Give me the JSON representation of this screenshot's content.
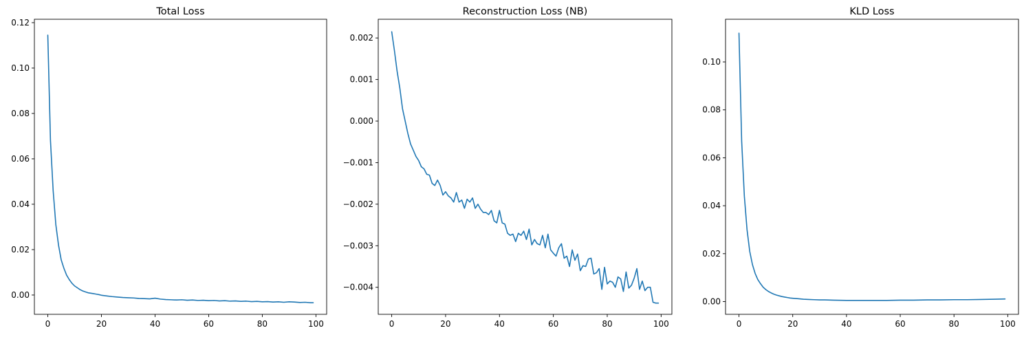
{
  "chart_data": [
    {
      "type": "line",
      "title": "Total Loss",
      "xlabel": "",
      "ylabel": "",
      "xlim": [
        -5,
        104
      ],
      "ylim": [
        -0.0085,
        0.1215
      ],
      "xticks": [
        0,
        20,
        40,
        60,
        80,
        100
      ],
      "xtick_labels": [
        "0",
        "20",
        "40",
        "60",
        "80",
        "100"
      ],
      "yticks": [
        0.0,
        0.02,
        0.04,
        0.06,
        0.08,
        0.1,
        0.12
      ],
      "ytick_labels": [
        "0.00",
        "0.02",
        "0.04",
        "0.06",
        "0.08",
        "0.10",
        "0.12"
      ],
      "grid": false,
      "series": [
        {
          "color": "#1f77b4",
          "x": [
            0,
            1,
            2,
            3,
            4,
            5,
            6,
            7,
            8,
            9,
            10,
            11,
            12,
            13,
            14,
            15,
            16,
            17,
            18,
            19,
            20,
            22,
            24,
            26,
            28,
            30,
            32,
            34,
            36,
            38,
            40,
            42,
            44,
            46,
            48,
            50,
            52,
            54,
            56,
            58,
            60,
            62,
            64,
            66,
            68,
            70,
            72,
            74,
            76,
            78,
            80,
            82,
            84,
            86,
            88,
            90,
            92,
            94,
            96,
            98,
            99
          ],
          "y": [
            0.1145,
            0.068,
            0.046,
            0.031,
            0.022,
            0.0155,
            0.0118,
            0.0088,
            0.0068,
            0.0052,
            0.004,
            0.0032,
            0.0024,
            0.0018,
            0.0014,
            0.001,
            0.0008,
            0.0006,
            0.0004,
            0.0002,
            -0.0001,
            -0.0004,
            -0.0007,
            -0.0009,
            -0.0011,
            -0.0012,
            -0.0013,
            -0.0015,
            -0.0016,
            -0.0017,
            -0.0014,
            -0.0018,
            -0.002,
            -0.0021,
            -0.0022,
            -0.0021,
            -0.0023,
            -0.0022,
            -0.0024,
            -0.0023,
            -0.0025,
            -0.0024,
            -0.0026,
            -0.0025,
            -0.0027,
            -0.0026,
            -0.0028,
            -0.0027,
            -0.0029,
            -0.0028,
            -0.003,
            -0.0029,
            -0.0031,
            -0.003,
            -0.0032,
            -0.003,
            -0.0031,
            -0.0033,
            -0.0032,
            -0.0034,
            -0.0034
          ]
        }
      ]
    },
    {
      "type": "line",
      "title": "Reconstruction Loss (NB)",
      "xlabel": "",
      "ylabel": "",
      "xlim": [
        -5,
        104
      ],
      "ylim": [
        -0.00465,
        0.00245
      ],
      "xticks": [
        0,
        20,
        40,
        60,
        80,
        100
      ],
      "xtick_labels": [
        "0",
        "20",
        "40",
        "60",
        "80",
        "100"
      ],
      "yticks": [
        -0.004,
        -0.003,
        -0.002,
        -0.001,
        0.0,
        0.001,
        0.002
      ],
      "ytick_labels": [
        "−0.004",
        "−0.003",
        "−0.002",
        "−0.001",
        "0.000",
        "0.001",
        "0.002"
      ],
      "grid": false,
      "series": [
        {
          "color": "#1f77b4",
          "x": [
            0,
            1,
            2,
            3,
            4,
            5,
            6,
            7,
            8,
            9,
            10,
            11,
            12,
            13,
            14,
            15,
            16,
            17,
            18,
            19,
            20,
            21,
            22,
            23,
            24,
            25,
            26,
            27,
            28,
            29,
            30,
            31,
            32,
            33,
            34,
            35,
            36,
            37,
            38,
            39,
            40,
            41,
            42,
            43,
            44,
            45,
            46,
            47,
            48,
            49,
            50,
            51,
            52,
            53,
            54,
            55,
            56,
            57,
            58,
            59,
            60,
            61,
            62,
            63,
            64,
            65,
            66,
            67,
            68,
            69,
            70,
            71,
            72,
            73,
            74,
            75,
            76,
            77,
            78,
            79,
            80,
            81,
            82,
            83,
            84,
            85,
            86,
            87,
            88,
            89,
            90,
            91,
            92,
            93,
            94,
            95,
            96,
            97,
            98,
            99
          ],
          "y": [
            0.00215,
            0.0017,
            0.0012,
            0.0008,
            0.0003,
            0.0,
            -0.0003,
            -0.00055,
            -0.0007,
            -0.00085,
            -0.00095,
            -0.0011,
            -0.00115,
            -0.00128,
            -0.0013,
            -0.0015,
            -0.00155,
            -0.00142,
            -0.00155,
            -0.00178,
            -0.0017,
            -0.0018,
            -0.00185,
            -0.00195,
            -0.00172,
            -0.00195,
            -0.0019,
            -0.0021,
            -0.00188,
            -0.00195,
            -0.00185,
            -0.0021,
            -0.002,
            -0.00212,
            -0.0022,
            -0.0022,
            -0.00225,
            -0.00215,
            -0.0024,
            -0.00245,
            -0.00215,
            -0.00245,
            -0.00248,
            -0.0027,
            -0.00275,
            -0.00272,
            -0.0029,
            -0.0027,
            -0.00275,
            -0.00265,
            -0.00285,
            -0.0026,
            -0.00298,
            -0.00285,
            -0.00295,
            -0.00298,
            -0.00275,
            -0.00305,
            -0.00272,
            -0.0031,
            -0.00318,
            -0.00325,
            -0.00305,
            -0.00295,
            -0.0033,
            -0.00325,
            -0.0035,
            -0.0031,
            -0.00335,
            -0.0032,
            -0.0036,
            -0.00348,
            -0.0035,
            -0.00332,
            -0.0033,
            -0.00368,
            -0.00365,
            -0.00355,
            -0.00405,
            -0.00352,
            -0.00392,
            -0.00385,
            -0.00388,
            -0.004,
            -0.00375,
            -0.0038,
            -0.0041,
            -0.00363,
            -0.00402,
            -0.00395,
            -0.00378,
            -0.00355,
            -0.00405,
            -0.00385,
            -0.00408,
            -0.004,
            -0.004,
            -0.00436,
            -0.00438,
            -0.00438
          ]
        }
      ]
    },
    {
      "type": "line",
      "title": "KLD Loss",
      "xlabel": "",
      "ylabel": "",
      "xlim": [
        -5,
        104
      ],
      "ylim": [
        -0.0053,
        0.1178
      ],
      "xticks": [
        0,
        20,
        40,
        60,
        80,
        100
      ],
      "xtick_labels": [
        "0",
        "20",
        "40",
        "60",
        "80",
        "100"
      ],
      "yticks": [
        0.0,
        0.02,
        0.04,
        0.06,
        0.08,
        0.1
      ],
      "ytick_labels": [
        "0.00",
        "0.02",
        "0.04",
        "0.06",
        "0.08",
        "0.10"
      ],
      "grid": false,
      "series": [
        {
          "color": "#1f77b4",
          "x": [
            0,
            1,
            2,
            3,
            4,
            5,
            6,
            7,
            8,
            9,
            10,
            11,
            12,
            13,
            14,
            15,
            16,
            17,
            18,
            19,
            20,
            22,
            24,
            26,
            28,
            30,
            32,
            35,
            40,
            45,
            50,
            55,
            60,
            65,
            70,
            75,
            80,
            85,
            90,
            95,
            99
          ],
          "y": [
            0.112,
            0.067,
            0.044,
            0.03,
            0.021,
            0.0155,
            0.0118,
            0.0092,
            0.0075,
            0.006,
            0.005,
            0.0042,
            0.0036,
            0.0031,
            0.0027,
            0.0024,
            0.0021,
            0.0019,
            0.0017,
            0.0015,
            0.0014,
            0.0012,
            0.001,
            0.0009,
            0.0008,
            0.0007,
            0.0007,
            0.0006,
            0.0005,
            0.0005,
            0.0005,
            0.0005,
            0.0006,
            0.0006,
            0.0007,
            0.0007,
            0.0008,
            0.0008,
            0.0009,
            0.001,
            0.0011
          ]
        }
      ]
    }
  ]
}
